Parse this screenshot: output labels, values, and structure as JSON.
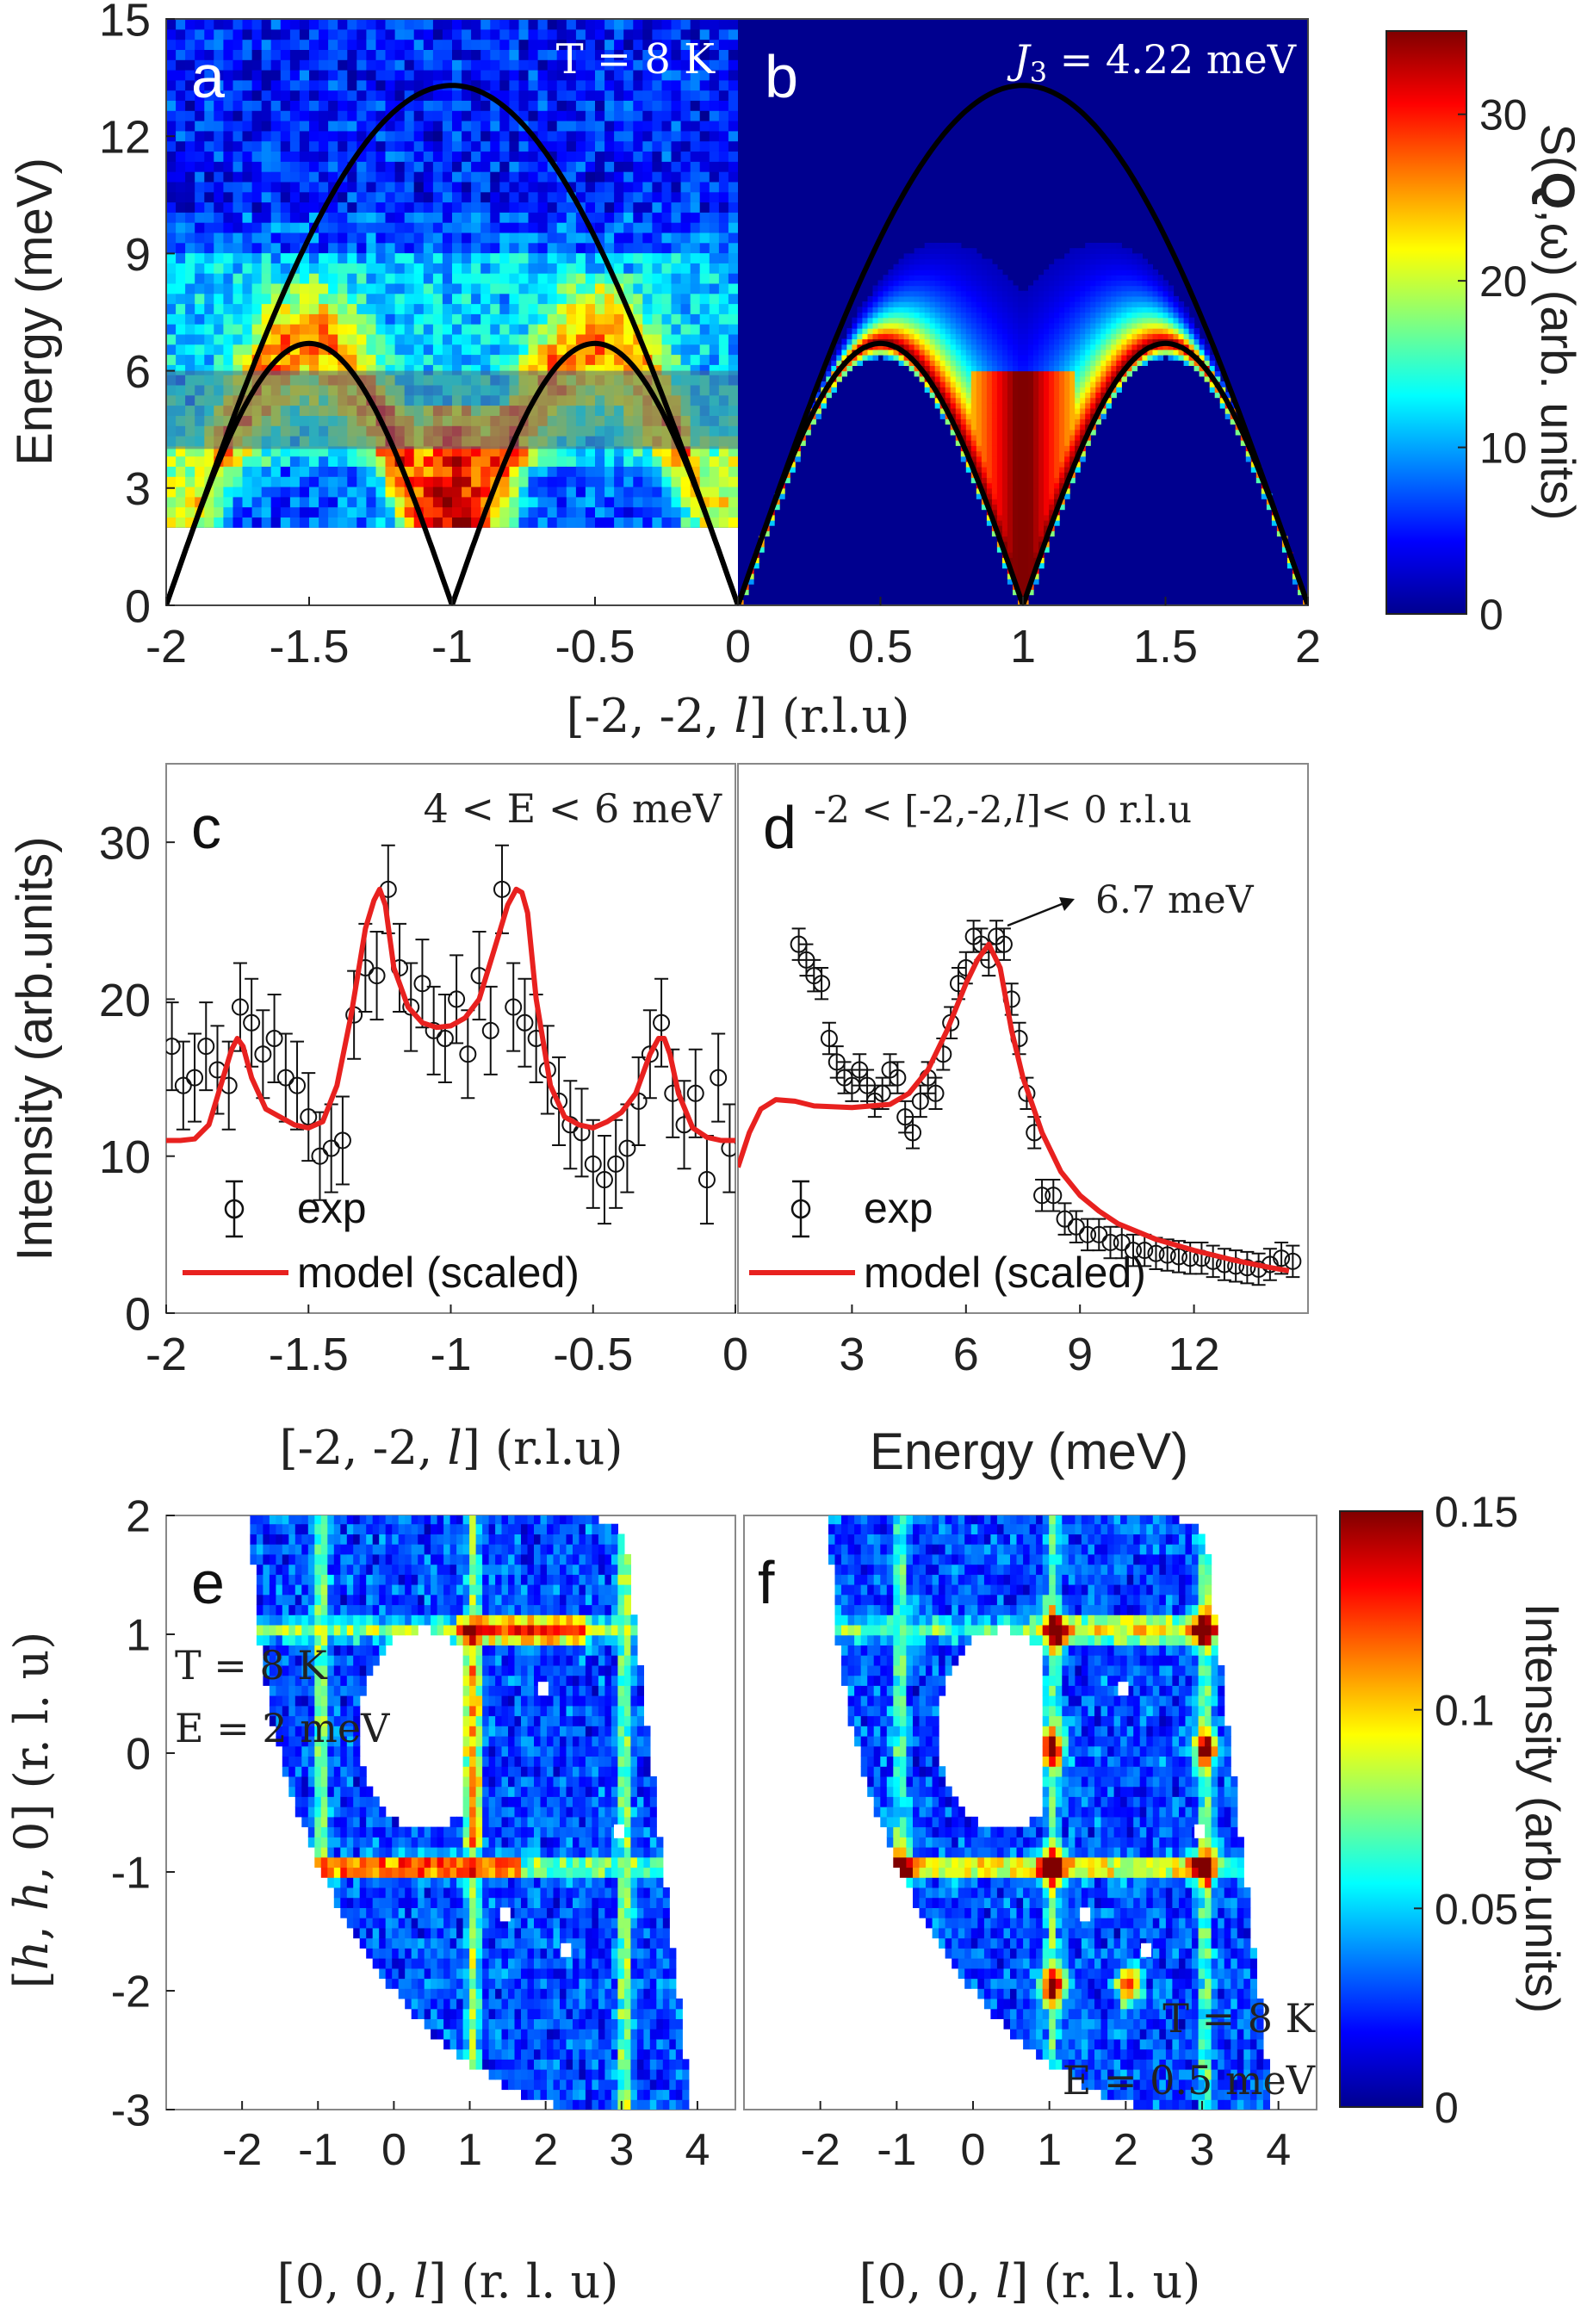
{
  "chart_data": [
    {
      "panel": "a",
      "type": "heatmap",
      "title": "T = 8 K",
      "xlabel": "[-2, -2, l] (r.l.u)",
      "ylabel": "Energy (meV)",
      "xlim": [
        -2,
        0
      ],
      "ylim": [
        0,
        15
      ],
      "xticks": [
        "-2",
        "-1.5",
        "-1",
        "-0.5",
        "0"
      ],
      "yticks": [
        "0",
        "3",
        "6",
        "9",
        "12",
        "15"
      ],
      "data_energy_min": 2,
      "highlight_band": [
        4,
        6
      ],
      "dispersion_upper_max": 13.3,
      "dispersion_lower_max": 6.7
    },
    {
      "panel": "b",
      "type": "heatmap",
      "title": "J3 = 4.22 meV",
      "title_var": "J",
      "title_sub": "3",
      "title_rest": " = 4.22 meV",
      "xlim": [
        0,
        2
      ],
      "ylim": [
        0,
        15
      ],
      "xticks": [
        "0.5",
        "1",
        "1.5",
        "2"
      ],
      "colorbar": {
        "label_prefix": "S(",
        "label_q": "Q",
        "label_suffix": ",ω) (arb. units)",
        "range": [
          0,
          35
        ],
        "ticks": [
          "0",
          "10",
          "20",
          "30"
        ]
      }
    },
    {
      "panel": "c",
      "type": "scatter",
      "title": "4 < E < 6 meV",
      "xlabel": "[-2, -2, l] (r.l.u)",
      "ylabel": "Intensity (arb.units)",
      "xlim": [
        -2,
        0
      ],
      "ylim": [
        0,
        35
      ],
      "xticks": [
        "-2",
        "-1.5",
        "-1",
        "-0.5",
        "0"
      ],
      "yticks": [
        "0",
        "10",
        "20",
        "30"
      ],
      "legend": [
        "exp",
        "model (scaled)"
      ],
      "series": [
        {
          "name": "exp",
          "x": [
            -1.98,
            -1.94,
            -1.9,
            -1.86,
            -1.82,
            -1.78,
            -1.74,
            -1.7,
            -1.66,
            -1.62,
            -1.58,
            -1.54,
            -1.5,
            -1.46,
            -1.42,
            -1.38,
            -1.34,
            -1.3,
            -1.26,
            -1.22,
            -1.18,
            -1.14,
            -1.1,
            -1.06,
            -1.02,
            -0.98,
            -0.94,
            -0.9,
            -0.86,
            -0.82,
            -0.78,
            -0.74,
            -0.7,
            -0.66,
            -0.62,
            -0.58,
            -0.54,
            -0.5,
            -0.46,
            -0.42,
            -0.38,
            -0.34,
            -0.3,
            -0.26,
            -0.22,
            -0.18,
            -0.14,
            -0.1,
            -0.06,
            -0.02
          ],
          "y": [
            17,
            14.5,
            15,
            17,
            15.5,
            14.5,
            19.5,
            18.5,
            16.5,
            17.5,
            15,
            14.5,
            12.5,
            10,
            10.5,
            11,
            19,
            22,
            21.5,
            27,
            22,
            19.5,
            21,
            18,
            17.5,
            20,
            16.5,
            21.5,
            18,
            27,
            19.5,
            18.5,
            17.5,
            15.5,
            13.5,
            12,
            11.5,
            9.5,
            8.5,
            9.5,
            10.5,
            13.5,
            16.5,
            18.5,
            14,
            12,
            14,
            8.5,
            15,
            10.5
          ],
          "err": 2.8
        },
        {
          "name": "model (scaled)",
          "x": [
            -2,
            -1.95,
            -1.9,
            -1.85,
            -1.8,
            -1.77,
            -1.75,
            -1.73,
            -1.7,
            -1.65,
            -1.6,
            -1.55,
            -1.5,
            -1.45,
            -1.4,
            -1.35,
            -1.3,
            -1.27,
            -1.25,
            -1.23,
            -1.2,
            -1.15,
            -1.1,
            -1.05,
            -1,
            -0.95,
            -0.9,
            -0.85,
            -0.8,
            -0.77,
            -0.75,
            -0.73,
            -0.7,
            -0.65,
            -0.6,
            -0.55,
            -0.5,
            -0.45,
            -0.4,
            -0.35,
            -0.3,
            -0.27,
            -0.25,
            -0.23,
            -0.2,
            -0.15,
            -0.1,
            -0.05,
            0
          ],
          "y": [
            11,
            11,
            11.1,
            12,
            15,
            16.8,
            17.5,
            17,
            15,
            13,
            12.5,
            12,
            11.8,
            12.2,
            14.5,
            19,
            24.5,
            26.3,
            27,
            26,
            22,
            19.5,
            18.5,
            18.2,
            18.3,
            18.8,
            20,
            23,
            26,
            27,
            26.8,
            25.5,
            20,
            14.5,
            12.5,
            12,
            11.8,
            12.2,
            12.8,
            14,
            16.5,
            17.5,
            17.5,
            16.5,
            14,
            11.8,
            11.2,
            11,
            11
          ]
        }
      ]
    },
    {
      "panel": "d",
      "type": "scatter",
      "title": "-2 < [-2,-2,l]< 0 r.l.u",
      "title_head": "-2 < [-2,-2,",
      "title_var": "l",
      "title_tail": "]< 0 r.l.u",
      "xlabel": "Energy (meV)",
      "xlim": [
        0,
        15
      ],
      "xticks": [
        "0",
        "3",
        "6",
        "9",
        "12"
      ],
      "annotation": "6.7 meV",
      "legend": [
        "exp",
        "model (scaled)"
      ],
      "series": [
        {
          "name": "exp",
          "x": [
            1.6,
            1.8,
            2,
            2.2,
            2.4,
            2.6,
            2.8,
            3,
            3.2,
            3.4,
            3.6,
            3.8,
            4,
            4.2,
            4.4,
            4.6,
            4.8,
            5,
            5.2,
            5.4,
            5.6,
            5.8,
            6,
            6.2,
            6.4,
            6.6,
            6.8,
            7,
            7.2,
            7.4,
            7.6,
            7.8,
            8,
            8.3,
            8.6,
            8.9,
            9.2,
            9.5,
            9.8,
            10.1,
            10.4,
            10.7,
            11,
            11.3,
            11.6,
            11.9,
            12.2,
            12.5,
            12.8,
            13.1,
            13.4,
            13.7,
            14,
            14.3,
            14.6
          ],
          "y": [
            23.5,
            22.5,
            21.5,
            21,
            17.5,
            16,
            15,
            14.5,
            15.5,
            14.5,
            13.5,
            14,
            15.5,
            15,
            12.5,
            11.5,
            13.5,
            15,
            14,
            16.5,
            18.5,
            21,
            22,
            24,
            23.5,
            22.5,
            24,
            23.5,
            20,
            17.5,
            14,
            11.5,
            7.5,
            7.5,
            6,
            5.5,
            5,
            5,
            4.5,
            4.5,
            4,
            4,
            3.8,
            3.7,
            3.6,
            3.5,
            3.5,
            3.3,
            3.1,
            3,
            2.9,
            2.8,
            3.1,
            3.5,
            3.3
          ],
          "err": 1.0
        },
        {
          "name": "model (scaled)",
          "x": [
            0,
            0.3,
            0.6,
            1,
            1.5,
            2,
            3,
            4,
            4.5,
            5,
            5.5,
            6,
            6.3,
            6.6,
            6.9,
            7.2,
            7.5,
            8,
            8.5,
            9,
            9.5,
            10,
            11,
            12,
            13,
            14,
            14.5
          ],
          "y": [
            9.3,
            11.5,
            13,
            13.6,
            13.5,
            13.2,
            13.1,
            13.3,
            14,
            15.5,
            18,
            21,
            22.5,
            23.5,
            22,
            18,
            15,
            11.5,
            9,
            7.5,
            6.5,
            5.7,
            4.7,
            4,
            3.4,
            2.9,
            2.7
          ]
        }
      ]
    },
    {
      "panel": "e",
      "type": "heatmap",
      "labels": [
        "T = 8 K",
        "E = 2 meV"
      ],
      "xlabel": "[0, 0, l] (r. l. u)",
      "ylabel": "[h, h, 0] (r. l. u)",
      "xlim": [
        -3,
        4.5
      ],
      "ylim": [
        -3,
        2
      ],
      "xticks": [
        "-2",
        "-1",
        "0",
        "1",
        "2",
        "3",
        "4"
      ],
      "yticks": [
        "-3",
        "-2",
        "-1",
        "0",
        "1",
        "2"
      ]
    },
    {
      "panel": "f",
      "type": "heatmap",
      "labels": [
        "T = 8 K",
        "E = 0.5 meV"
      ],
      "xlabel": "[0, 0, l] (r. l. u)",
      "xlim": [
        -3,
        4.5
      ],
      "ylim": [
        -3,
        2
      ],
      "xticks": [
        "-2",
        "-1",
        "0",
        "1",
        "2",
        "3",
        "4"
      ],
      "colorbar": {
        "label": "Intensity (arb.units)",
        "range": [
          0,
          0.15
        ],
        "ticks": [
          "0",
          "0.05",
          "0.1",
          "0.15"
        ]
      }
    }
  ],
  "panel_letters": [
    "a",
    "b",
    "c",
    "d",
    "e",
    "f"
  ],
  "axis_label_parts": {
    "hkl_pre": "[-2, -2, ",
    "hkl_var": "l",
    "hkl_post": "] (r.l.u)",
    "qx_pre": "[0, 0, ",
    "qx_var": "l",
    "qx_post": "] (r. l. u)",
    "qy_pre": "[",
    "qy_var_h1": "h",
    "qy_mid": ", ",
    "qy_var_h2": "h",
    "qy_post": ", 0] (r. l. u)"
  },
  "colors": {
    "model": "#e8211f",
    "exp": "#111111",
    "dispersion": "#000000"
  }
}
